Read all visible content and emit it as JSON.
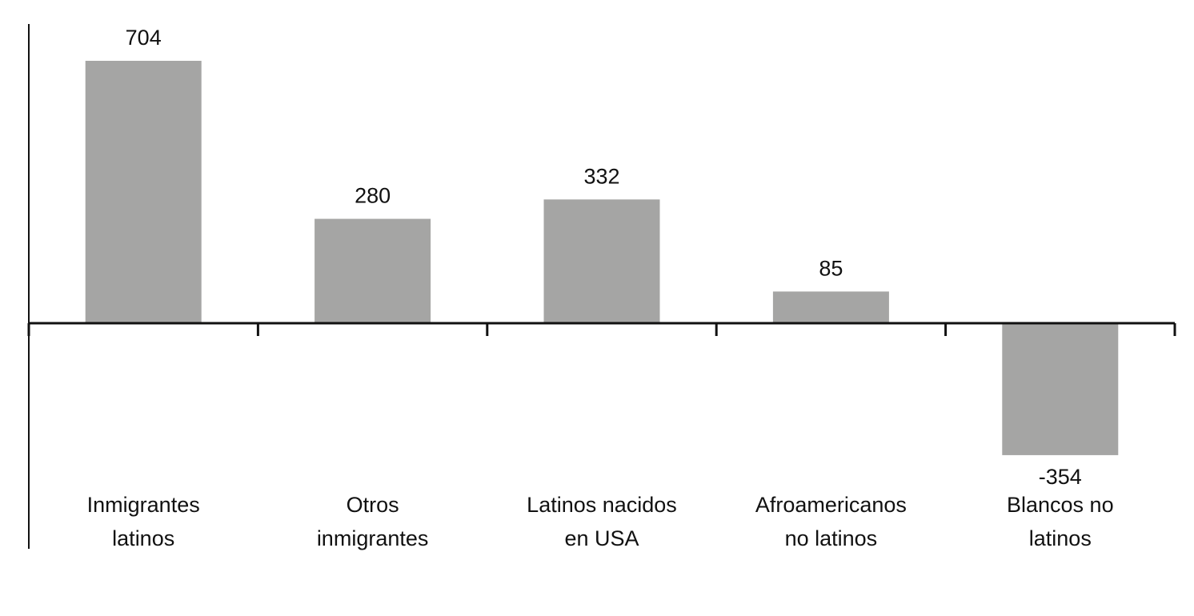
{
  "chart_data": {
    "type": "bar",
    "categories": [
      [
        "Inmigrantes",
        "latinos"
      ],
      [
        "Otros",
        "inmigrantes"
      ],
      [
        "Latinos nacidos",
        "en USA"
      ],
      [
        "Afroamericanos",
        "no latinos"
      ],
      [
        "Blancos no",
        "latinos"
      ]
    ],
    "values": [
      704,
      280,
      332,
      85,
      -354
    ],
    "value_labels": [
      "704",
      "280",
      "332",
      "85",
      "-354"
    ],
    "ylim": [
      -590,
      790
    ],
    "grid": false,
    "legend": "none",
    "colors": {
      "bar": "#a5a5a4",
      "axis": "#111111",
      "text": "#111111"
    }
  }
}
